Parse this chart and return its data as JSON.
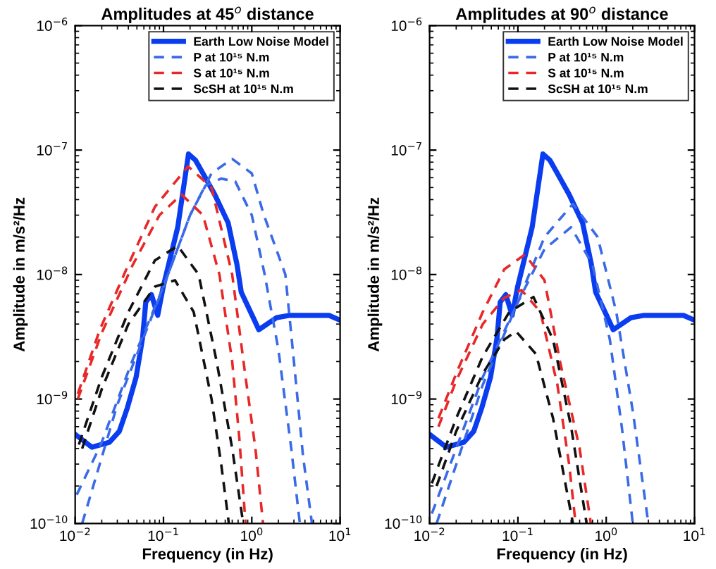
{
  "chart_data": [
    {
      "type": "line",
      "title": "Amplitudes at 45$^{o}$ distance",
      "xlabel": "Frequency (in Hz)",
      "ylabel": "Amplitude in m/s²/Hz",
      "log": "xy",
      "legend": "top right",
      "grid": false,
      "xlim": [
        0.01,
        10
      ],
      "ylim": [
        1e-10,
        1e-06
      ],
      "xticks": [
        {
          "value": 0.01,
          "label": "10$^{−2}$"
        },
        {
          "value": 0.1,
          "label": "10$^{−1}$"
        },
        {
          "value": 1,
          "label": "10$^{0}$"
        },
        {
          "value": 10,
          "label": "10$^{1}$"
        }
      ],
      "yticks": [
        {
          "value": 1e-10,
          "label": "10$^{−10}$"
        },
        {
          "value": 1e-09,
          "label": "10$^{−9}$"
        },
        {
          "value": 1e-08,
          "label": "10$^{−8}$"
        },
        {
          "value": 1e-07,
          "label": "10$^{−7}$"
        },
        {
          "value": 1e-06,
          "label": "10$^{−6}$"
        }
      ],
      "series": [
        {
          "name": "Earth Low Noise Model",
          "color": "#0a3cf0",
          "line_style": "solid",
          "x": [
            0.01,
            0.0155,
            0.0245,
            0.0316,
            0.039,
            0.049,
            0.058,
            0.063,
            0.073,
            0.086,
            0.099,
            0.145,
            0.192,
            0.23,
            0.27,
            0.38,
            0.54,
            0.68,
            0.76,
            1.07,
            1.2,
            1.9,
            2.7,
            7.5,
            10
          ],
          "values": [
            5.2e-10,
            4.1e-10,
            4.5e-10,
            5.5e-10,
            8.5e-10,
            1.5e-09,
            3.1e-09,
            6e-09,
            6.9e-09,
            4.7e-09,
            7.9e-09,
            2.4e-08,
            9.3e-08,
            8.3e-08,
            6.8e-08,
            4.4e-08,
            2.6e-08,
            1.2e-08,
            7.2e-09,
            4.3e-09,
            3.6e-09,
            4.5e-09,
            4.7e-09,
            4.7e-09,
            4.3e-09
          ]
        },
        {
          "name": "P at 10¹⁵ N.m",
          "color": "#3a6ae8",
          "line_style": "dashed",
          "x": [
            0.0104,
            0.0195,
            0.044,
            0.1,
            0.2,
            0.35,
            0.6,
            1.0,
            1.35,
            2.4,
            3.0,
            3.8,
            4.8
          ],
          "values": [
            1.7e-10,
            4.3e-10,
            2e-09,
            8e-09,
            3e-08,
            6.5e-08,
            8.5e-08,
            6.5e-08,
            3.1e-08,
            1e-08,
            2e-09,
            3.5e-10,
            1e-10
          ]
        },
        {
          "color": "#3a6ae8",
          "line_style": "dashed",
          "x": [
            0.012,
            0.03,
            0.1,
            0.2,
            0.3,
            0.45,
            0.65,
            1.0,
            1.4,
            2.0,
            2.8,
            3.5
          ],
          "values": [
            1e-10,
            9e-10,
            8e-09,
            3e-08,
            5.2e-08,
            5.9e-08,
            5.6e-08,
            3e-08,
            1e-08,
            2.5e-09,
            4e-10,
            1e-10
          ]
        },
        {
          "name": "S at 10¹⁵ N.m",
          "color": "#e82828",
          "line_style": "dashed",
          "x": [
            0.0107,
            0.019,
            0.04,
            0.08,
            0.19,
            0.35,
            0.6,
            0.85,
            1.1,
            1.34
          ],
          "values": [
            1.1e-09,
            3.6e-09,
            1.2e-08,
            3.5e-08,
            7.4e-08,
            5e-08,
            1e-08,
            1.5e-09,
            4e-10,
            1e-10
          ]
        },
        {
          "color": "#e82828",
          "line_style": "dashed",
          "x": [
            0.0107,
            0.02,
            0.045,
            0.09,
            0.16,
            0.28,
            0.43,
            0.6,
            0.72,
            0.85
          ],
          "values": [
            1e-09,
            3.4e-09,
            1.2e-08,
            3e-08,
            4.4e-08,
            3e-08,
            1e-08,
            2e-09,
            5e-10,
            1e-10
          ]
        },
        {
          "name": "ScSH at 10¹⁵ N.m",
          "color": "#111111",
          "line_style": "dashed",
          "x": [
            0.011,
            0.02,
            0.04,
            0.08,
            0.145,
            0.25,
            0.4,
            0.6,
            0.8
          ],
          "values": [
            4.3e-10,
            1.5e-09,
            5e-09,
            1.3e-08,
            1.7e-08,
            1e-08,
            2e-09,
            4e-10,
            1e-10
          ]
        },
        {
          "color": "#111111",
          "line_style": "dashed",
          "x": [
            0.012,
            0.02,
            0.04,
            0.08,
            0.135,
            0.22,
            0.35,
            0.45,
            0.55
          ],
          "values": [
            4e-10,
            1.2e-09,
            4e-09,
            8e-09,
            9e-09,
            5e-09,
            1e-09,
            3e-10,
            1e-10
          ]
        }
      ]
    },
    {
      "type": "line",
      "title": "Amplitudes at 90$^{o}$ distance",
      "xlabel": "Frequency (in Hz)",
      "ylabel": "Amplitude in m/s²/Hz",
      "log": "xy",
      "legend": "top right",
      "grid": false,
      "xlim": [
        0.01,
        10
      ],
      "ylim": [
        1e-10,
        1e-06
      ],
      "xticks": [
        {
          "value": 0.01,
          "label": "10$^{−2}$"
        },
        {
          "value": 0.1,
          "label": "10$^{−1}$"
        },
        {
          "value": 1,
          "label": "10$^{0}$"
        },
        {
          "value": 10,
          "label": "10$^{1}$"
        }
      ],
      "yticks": [
        {
          "value": 1e-10,
          "label": "10$^{−10}$"
        },
        {
          "value": 1e-09,
          "label": "10$^{−9}$"
        },
        {
          "value": 1e-08,
          "label": "10$^{−8}$"
        },
        {
          "value": 1e-07,
          "label": "10$^{−7}$"
        },
        {
          "value": 1e-06,
          "label": "10$^{−6}$"
        }
      ],
      "series": [
        {
          "name": "Earth Low Noise Model",
          "color": "#0a3cf0",
          "line_style": "solid",
          "x": [
            0.01,
            0.0155,
            0.0245,
            0.0316,
            0.039,
            0.049,
            0.058,
            0.063,
            0.073,
            0.086,
            0.099,
            0.145,
            0.192,
            0.23,
            0.27,
            0.38,
            0.54,
            0.68,
            0.76,
            1.07,
            1.2,
            1.9,
            2.7,
            7.5,
            10
          ],
          "values": [
            5.2e-10,
            4.1e-10,
            4.5e-10,
            5.5e-10,
            8.5e-10,
            1.5e-09,
            3.1e-09,
            6e-09,
            6.9e-09,
            4.7e-09,
            7.9e-09,
            2.4e-08,
            9.3e-08,
            8.3e-08,
            6.8e-08,
            4.4e-08,
            2.6e-08,
            1.2e-08,
            7.2e-09,
            4.3e-09,
            3.6e-09,
            4.5e-09,
            4.7e-09,
            4.7e-09,
            4.3e-09
          ]
        },
        {
          "name": "P at 10¹⁵ N.m",
          "color": "#3a6ae8",
          "line_style": "dashed",
          "x": [
            0.0106,
            0.02,
            0.04,
            0.1,
            0.2,
            0.42,
            0.8,
            1.3,
            2.0,
            3.0
          ],
          "values": [
            1.2e-10,
            4e-10,
            1.5e-09,
            6e-09,
            2e-08,
            3.7e-08,
            2e-08,
            5e-09,
            8e-10,
            1e-10
          ]
        },
        {
          "color": "#3a6ae8",
          "line_style": "dashed",
          "x": [
            0.012,
            0.04,
            0.1,
            0.2,
            0.4,
            0.7,
            1.1,
            1.5,
            2.0
          ],
          "values": [
            1e-10,
            1.3e-09,
            6e-09,
            1.6e-08,
            2.4e-08,
            1.2e-08,
            3e-09,
            6e-10,
            1e-10
          ]
        },
        {
          "name": "S at 10¹⁵ N.m",
          "color": "#e82828",
          "line_style": "dashed",
          "x": [
            0.0126,
            0.02,
            0.04,
            0.07,
            0.12,
            0.2,
            0.3,
            0.5,
            0.67
          ],
          "values": [
            7e-10,
            1.6e-09,
            5e-09,
            1.1e-08,
            1.45e-08,
            9e-09,
            2e-09,
            4e-10,
            1e-10
          ]
        },
        {
          "color": "#e82828",
          "line_style": "dashed",
          "x": [
            0.0126,
            0.02,
            0.04,
            0.07,
            0.11,
            0.18,
            0.28,
            0.38,
            0.45
          ],
          "values": [
            6e-10,
            1.4e-09,
            4e-09,
            6.5e-09,
            7.5e-09,
            5e-09,
            1.3e-09,
            3e-10,
            1e-10
          ]
        },
        {
          "name": "ScSH at 10¹⁵ N.m",
          "color": "#111111",
          "line_style": "dashed",
          "x": [
            0.0106,
            0.02,
            0.04,
            0.08,
            0.15,
            0.25,
            0.4,
            0.6
          ],
          "values": [
            2.1e-10,
            7e-10,
            2.2e-09,
            5e-09,
            6.6e-09,
            3e-09,
            6e-10,
            1e-10
          ]
        },
        {
          "color": "#111111",
          "line_style": "dashed",
          "x": [
            0.012,
            0.02,
            0.04,
            0.07,
            0.095,
            0.16,
            0.25,
            0.42
          ],
          "values": [
            2e-10,
            5.5e-10,
            1.6e-09,
            3e-09,
            3.5e-09,
            2.3e-09,
            7e-10,
            1e-10
          ]
        }
      ]
    }
  ]
}
